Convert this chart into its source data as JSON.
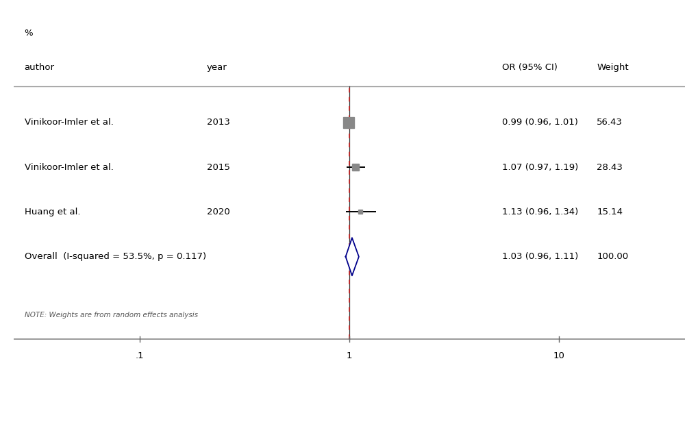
{
  "studies": [
    {
      "author": "Vinikoor-Imler et al.",
      "year": "2013",
      "or": 0.99,
      "ci_low": 0.96,
      "ci_high": 1.01,
      "weight_str": "56.43",
      "marker_size": 12
    },
    {
      "author": "Vinikoor-Imler et al.",
      "year": "2015",
      "or": 1.07,
      "ci_low": 0.97,
      "ci_high": 1.19,
      "weight_str": "28.43",
      "marker_size": 7
    },
    {
      "author": "Huang et al.",
      "year": "2020",
      "or": 1.13,
      "ci_low": 0.96,
      "ci_high": 1.34,
      "weight_str": "15.14",
      "marker_size": 5
    }
  ],
  "overall": {
    "label": "Overall  (I-squared = 53.5%, p = 0.117)",
    "or": 1.03,
    "ci_low": 0.96,
    "ci_high": 1.11,
    "weight_str": "100.00"
  },
  "or_ci_texts": [
    "0.99 (0.96, 1.01)",
    "1.07 (0.97, 1.19)",
    "1.13 (0.96, 1.34)",
    "1.03 (0.96, 1.11)"
  ],
  "note": "NOTE: Weights are from random effects analysis",
  "col_header_percent": "%",
  "col_header_author": "author",
  "col_header_year": "year",
  "col_header_or": "OR (95% CI)",
  "col_header_weight": "Weight",
  "x_ticks": [
    0.1,
    1.0,
    10.0
  ],
  "x_tick_labels": [
    ".1",
    "1",
    "10"
  ],
  "bg_color": "#ffffff",
  "diamond_color": "#00008B",
  "study_marker_color": "#888888",
  "ci_line_color": "#000000",
  "solid_line_color": "#333333",
  "dashed_line_color": "#cc2222",
  "text_color": "#000000",
  "header_line_color": "#999999",
  "bottom_line_color": "#888888"
}
